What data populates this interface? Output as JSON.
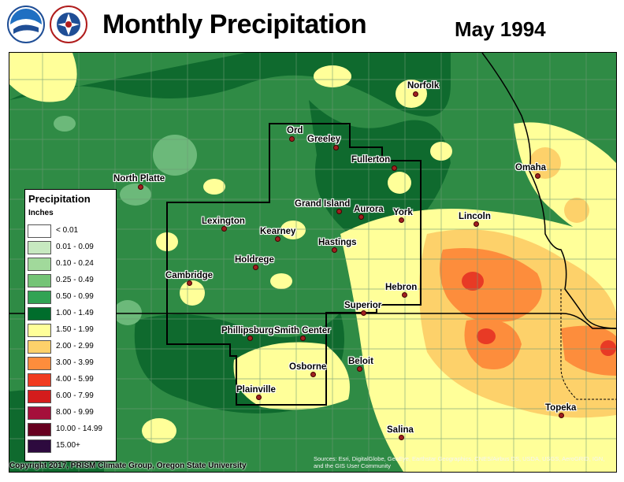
{
  "header": {
    "title": "Monthly Precipitation",
    "date": "May 1994",
    "logos": [
      "noaa-logo",
      "nws-logo"
    ]
  },
  "legend": {
    "title": "Precipitation",
    "units": "Inches",
    "bins": [
      {
        "label": "< 0.01",
        "color": "#ffffff"
      },
      {
        "label": "0.01 - 0.09",
        "color": "#c7e9c0"
      },
      {
        "label": "0.10 - 0.24",
        "color": "#a1d99b"
      },
      {
        "label": "0.25 - 0.49",
        "color": "#74c476"
      },
      {
        "label": "0.50 - 0.99",
        "color": "#31a354"
      },
      {
        "label": "1.00 - 1.49",
        "color": "#006d2c"
      },
      {
        "label": "1.50 - 1.99",
        "color": "#ffff99"
      },
      {
        "label": "2.00 - 2.99",
        "color": "#fdd16a"
      },
      {
        "label": "3.00 - 3.99",
        "color": "#fd8d3c"
      },
      {
        "label": "4.00 - 5.99",
        "color": "#f03b20"
      },
      {
        "label": "6.00 - 7.99",
        "color": "#d41c1c"
      },
      {
        "label": "8.00 - 9.99",
        "color": "#a50f3b"
      },
      {
        "label": "10.00 - 14.99",
        "color": "#67001f"
      },
      {
        "label": "15.00+",
        "color": "#2d0a3e"
      }
    ]
  },
  "cities": [
    {
      "name": "Norfolk"
    },
    {
      "name": "Ord"
    },
    {
      "name": "Greeley"
    },
    {
      "name": "Fullerton"
    },
    {
      "name": "North Platte"
    },
    {
      "name": "Omaha"
    },
    {
      "name": "Grand Island"
    },
    {
      "name": "Aurora"
    },
    {
      "name": "York"
    },
    {
      "name": "Lincoln"
    },
    {
      "name": "Lexington"
    },
    {
      "name": "Kearney"
    },
    {
      "name": "Hastings"
    },
    {
      "name": "Holdrege"
    },
    {
      "name": "Cambridge"
    },
    {
      "name": "Hebron"
    },
    {
      "name": "Superior"
    },
    {
      "name": "Phillipsburg"
    },
    {
      "name": "Smith Center"
    },
    {
      "name": "Beloit"
    },
    {
      "name": "Osborne"
    },
    {
      "name": "Plainville"
    },
    {
      "name": "Topeka"
    },
    {
      "name": "Salina"
    }
  ],
  "footer": {
    "copyright": "Copyright 2017, PRISM Climate Group, Oregon State University",
    "sources": "Sources: Esri, DigitalGlobe, GeoEye, Earthstar Geographics, CNES/Airbus DS, USDA, USGS, AeroGRID, IGN, and the GIS User Community"
  }
}
